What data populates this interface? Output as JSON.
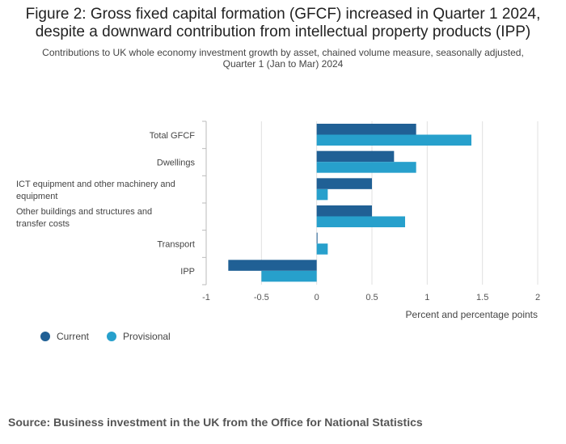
{
  "title": {
    "line1": "Figure 2: Gross fixed capital formation (GFCF) increased in Quarter 1 2024,",
    "line2": "despite a downward contribution from intellectual property products (IPP)"
  },
  "subtitle": {
    "line1": "Contributions to UK whole economy investment growth by asset, chained volume measure, seasonally adjusted,",
    "line2": "Quarter 1 (Jan to Mar) 2024"
  },
  "colors": {
    "current": "#206095",
    "provisional": "#27a0cc",
    "grid": "#e0e0e0",
    "axis": "#bbbbbb"
  },
  "legend": {
    "current": "Current",
    "provisional": "Provisional"
  },
  "source": "Source: Business investment in the UK from the Office for National Statistics",
  "chart_data": {
    "type": "bar",
    "orientation": "horizontal",
    "categories": [
      [
        "Total GFCF"
      ],
      [
        "Dwellings"
      ],
      [
        "ICT equipment and other machinery and",
        "equipment"
      ],
      [
        "Other buildings and structures and",
        "transfer costs"
      ],
      [
        "Transport"
      ],
      [
        "IPP"
      ]
    ],
    "series": [
      {
        "name": "Current",
        "values": [
          0.9,
          0.7,
          0.5,
          0.5,
          0.0,
          -0.8
        ]
      },
      {
        "name": "Provisional",
        "values": [
          1.4,
          0.9,
          0.1,
          0.8,
          0.1,
          -0.5
        ]
      }
    ],
    "xlabel": "Percent and percentage points",
    "xlim": [
      -1,
      2
    ],
    "xticks": [
      -1,
      -0.5,
      0,
      0.5,
      1,
      1.5,
      2
    ],
    "xtick_labels": [
      "-1",
      "-0.5",
      "0",
      "0.5",
      "1",
      "1.5",
      "2"
    ],
    "grid": true,
    "legend_position": "bottom-left"
  }
}
